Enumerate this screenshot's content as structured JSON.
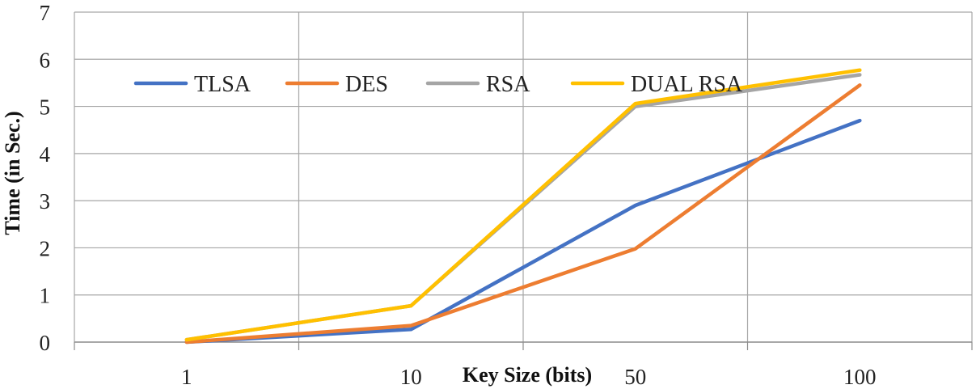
{
  "chart_data": {
    "type": "line",
    "title": "",
    "xlabel": "Key Size (bits)",
    "ylabel": "Time (in Sec.)",
    "categories": [
      "1",
      "10",
      "50",
      "100"
    ],
    "ylim": [
      0,
      7
    ],
    "yticks": [
      0,
      1,
      2,
      3,
      4,
      5,
      6,
      7
    ],
    "grid": true,
    "legend_position": "top-left",
    "series": [
      {
        "name": "TLSA",
        "color": "#4472C4",
        "values": [
          0.0,
          0.27,
          2.9,
          4.7
        ]
      },
      {
        "name": "DES",
        "color": "#ED7D31",
        "values": [
          0.0,
          0.35,
          1.98,
          5.45
        ]
      },
      {
        "name": "RSA",
        "color": "#A5A5A5",
        "values": [
          0.05,
          0.77,
          5.0,
          5.67
        ]
      },
      {
        "name": "DUAL RSA",
        "color": "#FFC000",
        "values": [
          0.05,
          0.77,
          5.06,
          5.77
        ]
      }
    ]
  }
}
